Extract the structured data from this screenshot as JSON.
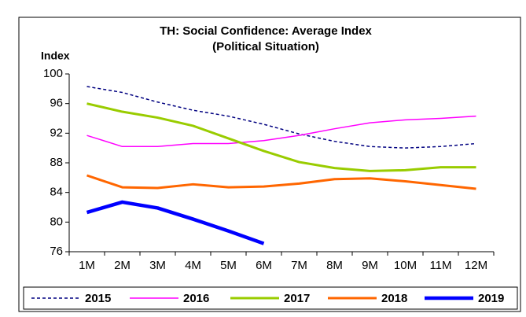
{
  "chart_data": {
    "type": "line",
    "title": "TH: Social Confidence: Average Index",
    "subtitle": "(Political Situation)",
    "y_label": "Index",
    "categories": [
      "1M",
      "2M",
      "3M",
      "4M",
      "5M",
      "6M",
      "7M",
      "8M",
      "9M",
      "10M",
      "11M",
      "12M"
    ],
    "ylim": [
      76,
      100
    ],
    "yticks": [
      76,
      80,
      84,
      88,
      92,
      96,
      100
    ],
    "series": [
      {
        "name": "2015",
        "color": "#000080",
        "dashed": true,
        "width": 1.5,
        "values": [
          98.3,
          97.5,
          96.2,
          95.1,
          94.3,
          93.2,
          91.9,
          90.9,
          90.2,
          90.0,
          90.2,
          90.6
        ]
      },
      {
        "name": "2016",
        "color": "#ff00ff",
        "width": 1.5,
        "values": [
          91.7,
          90.2,
          90.2,
          90.6,
          90.6,
          91.0,
          91.7,
          92.6,
          93.4,
          93.8,
          94.0,
          94.3
        ]
      },
      {
        "name": "2017",
        "color": "#99cc00",
        "width": 3,
        "values": [
          96.0,
          94.9,
          94.1,
          93.0,
          91.3,
          89.6,
          88.1,
          87.3,
          86.9,
          87.0,
          87.4,
          87.4
        ]
      },
      {
        "name": "2018",
        "color": "#ff6600",
        "width": 3,
        "values": [
          86.3,
          84.7,
          84.6,
          85.1,
          84.7,
          84.8,
          85.2,
          85.8,
          85.9,
          85.5,
          85.0,
          84.5
        ]
      },
      {
        "name": "2019",
        "color": "#0000ff",
        "width": 4.5,
        "values": [
          81.3,
          82.7,
          81.9,
          80.4,
          78.8,
          77.1,
          null,
          null,
          null,
          null,
          null,
          null
        ]
      }
    ]
  }
}
